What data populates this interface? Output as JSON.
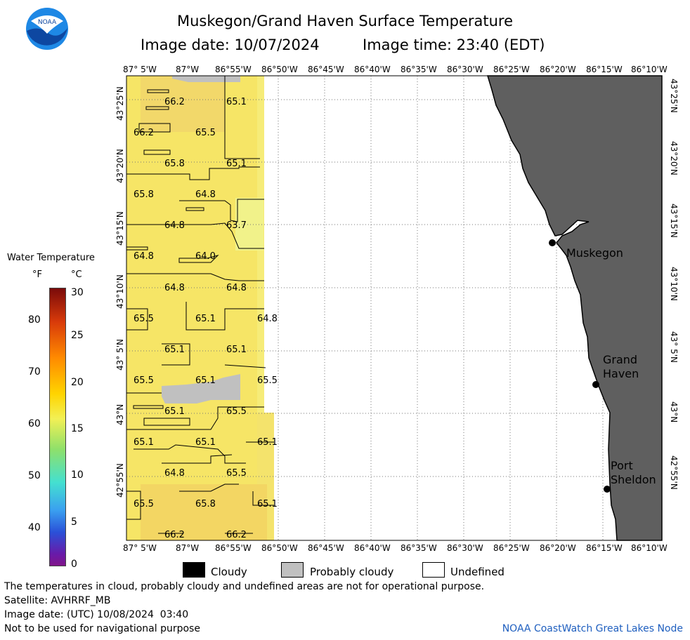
{
  "title": "Muskegon/Grand Haven Surface Temperature",
  "image_date": "Image date: 10/07/2024",
  "image_time": "Image time: 23:40 (EDT)",
  "logo_text": "NOAA",
  "lon_labels": [
    "87° 5'W",
    "87°W",
    "86°55'W",
    "86°50'W",
    "86°45'W",
    "86°40'W",
    "86°35'W",
    "86°30'W",
    "86°25'W",
    "86°20'W",
    "86°15'W",
    "86°10'W"
  ],
  "lat_labels": [
    "43°25'N",
    "43°20'N",
    "43°15'N",
    "43°10'N",
    "43° 5'N",
    "43°N",
    "42°55'N"
  ],
  "cities": [
    {
      "name": "Muskegon"
    },
    {
      "name": "Grand Haven"
    },
    {
      "name": "Port Sheldon"
    }
  ],
  "temp_labels": [
    "66.2",
    "65.1",
    "66.2",
    "65.5",
    "65.8",
    "65.1",
    "65.8",
    "64.8",
    "64.8",
    "63.7",
    "64.8",
    "64.0",
    "64.8",
    "64.8",
    "65.5",
    "65.1",
    "64.8",
    "65.1",
    "65.1",
    "65.5",
    "65.1",
    "65.5",
    "65.1",
    "65.5",
    "65.1",
    "65.1",
    "65.1",
    "64.8",
    "65.5",
    "65.5",
    "65.8",
    "65.1",
    "66.2",
    "66.2"
  ],
  "colorbar": {
    "title": "Water Temperature",
    "unit_f": "°F",
    "unit_c": "°C",
    "f_ticks": [
      "80",
      "70",
      "60",
      "50",
      "40"
    ],
    "c_ticks": [
      "30",
      "25",
      "20",
      "15",
      "10",
      "5",
      "0"
    ]
  },
  "legend": [
    {
      "label": "Cloudy",
      "color": "#000000"
    },
    {
      "label": "Probably cloudy",
      "color": "#c0c0c0"
    },
    {
      "label": "Undefined",
      "color": "#ffffff"
    }
  ],
  "footer": {
    "disclaimer": "The temperatures in cloud, probably cloudy and undefined areas are not for operational purpose.",
    "satellite": "Satellite: AVHRRF_MB",
    "utc_date": "Image date: (UTC) 10/08/2024  03:40",
    "nav_warning": "Not to be used for navigational purpose",
    "credit": "NOAA CoastWatch Great Lakes Node"
  },
  "colors": {
    "land": "#5f5f5f",
    "water_warm": "#f4e35a",
    "cloud": "#c0c0c0"
  }
}
